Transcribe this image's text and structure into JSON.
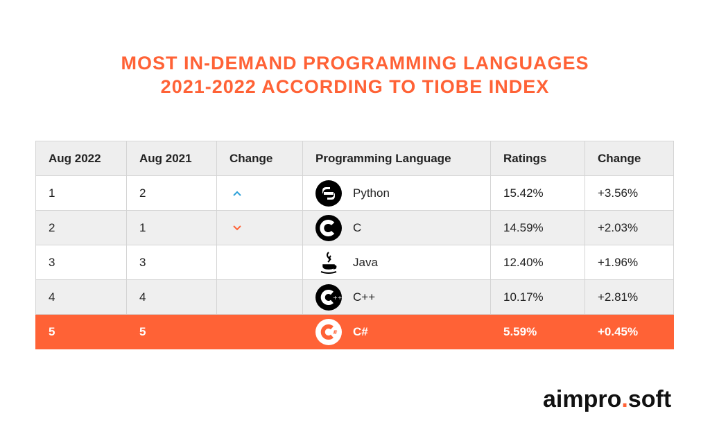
{
  "title": {
    "line1": "MOST IN-DEMAND PROGRAMMING LANGUAGES",
    "line2": "2021-2022 ACCORDING TO TIOBE INDEX"
  },
  "table": {
    "headers": [
      "Aug 2022",
      "Aug 2021",
      "Change",
      "Programming Language",
      "Ratings",
      "Change"
    ],
    "rows": [
      {
        "aug2022": "1",
        "aug2021": "2",
        "change_icon": "arrow-up-icon",
        "language": "Python",
        "icon": "python-icon",
        "rating": "15.42%",
        "change": "+3.56%"
      },
      {
        "aug2022": "2",
        "aug2021": "1",
        "change_icon": "arrow-down-icon",
        "language": "C",
        "icon": "c-icon",
        "rating": "14.59%",
        "change": "+2.03%"
      },
      {
        "aug2022": "3",
        "aug2021": "3",
        "change_icon": "",
        "language": "Java",
        "icon": "java-icon",
        "rating": "12.40%",
        "change": "+1.96%"
      },
      {
        "aug2022": "4",
        "aug2021": "4",
        "change_icon": "",
        "language": "C++",
        "icon": "cpp-icon",
        "rating": "10.17%",
        "change": "+2.81%"
      },
      {
        "aug2022": "5",
        "aug2021": "5",
        "change_icon": "",
        "language": "C#",
        "icon": "csharp-icon",
        "rating": "5.59%",
        "change": "+0.45%"
      }
    ]
  },
  "logo": {
    "part1": "aimpro",
    "dot": ".",
    "part2": "soft"
  },
  "colors": {
    "accent": "#ff6236",
    "up": "#2a9fd8",
    "down": "#ff6236"
  }
}
